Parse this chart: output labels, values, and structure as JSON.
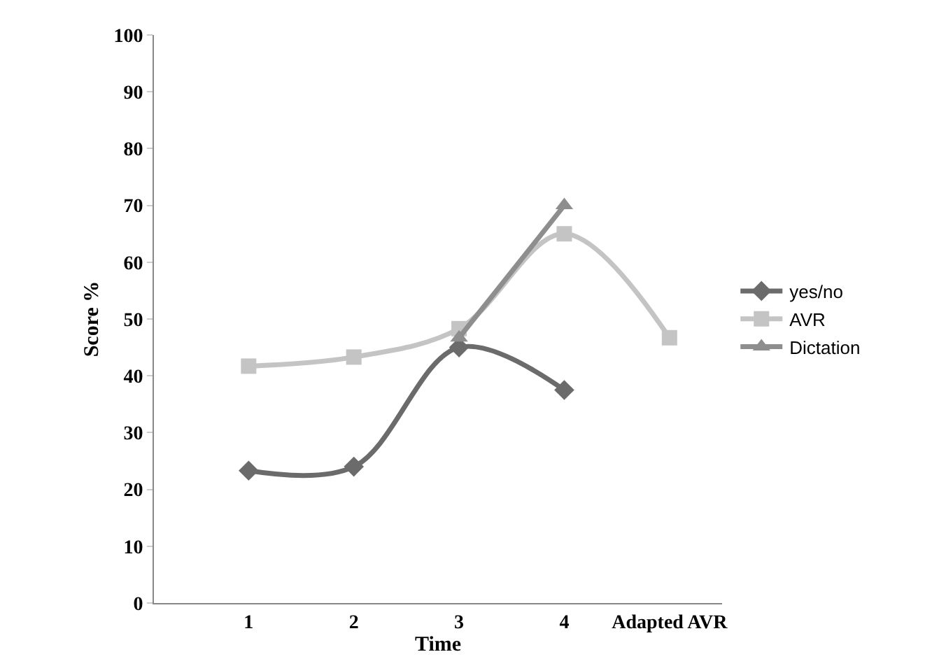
{
  "chart_data": {
    "type": "line",
    "xlabel": "Time",
    "ylabel": "Score %",
    "categories": [
      "1",
      "2",
      "3",
      "4",
      "Adapted AVR"
    ],
    "ylim": [
      0,
      100
    ],
    "yticks": [
      0,
      10,
      20,
      30,
      40,
      50,
      60,
      70,
      80,
      90,
      100
    ],
    "grid": false,
    "legend": "right",
    "series": [
      {
        "name": "yes/no",
        "color": "#6b6b6b",
        "marker": "diamond",
        "values": [
          23.3,
          24,
          45,
          37.5,
          null
        ]
      },
      {
        "name": "AVR",
        "color": "#c4c4c4",
        "marker": "square",
        "values": [
          41.7,
          43.3,
          48.3,
          65,
          46.7
        ]
      },
      {
        "name": "Dictation",
        "color": "#8e8e8e",
        "marker": "triangle",
        "values": [
          null,
          null,
          46.7,
          70,
          null
        ]
      }
    ]
  }
}
